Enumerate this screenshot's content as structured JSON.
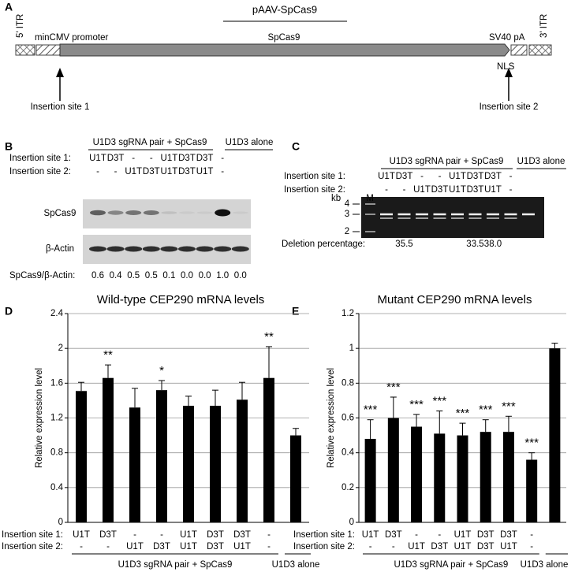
{
  "panel_labels": [
    "A",
    "B",
    "C",
    "D",
    "E"
  ],
  "construct": {
    "title": "pAAV-SpCas9",
    "itr5": "5' ITR",
    "promoter": "minCMV promoter",
    "gene": "SpCas9",
    "polya": "SV40 pA",
    "itr3": "3' ITR",
    "nls": "NLS",
    "site1": "Insertion site 1",
    "site2": "Insertion site 2"
  },
  "blot": {
    "group": "U1D3 sgRNA pair + SpCas9",
    "alone": "U1D3 alone",
    "rows": [
      {
        "label": "Insertion site 1:",
        "values": [
          "U1T",
          "D3T",
          "-",
          "-",
          "U1T",
          "D3T",
          "D3T",
          "-",
          null
        ]
      },
      {
        "label": "Insertion site 2:",
        "values": [
          "-",
          "-",
          "U1T",
          "D3T",
          "U1T",
          "D3T",
          "U1T",
          "-",
          null
        ]
      }
    ],
    "bands": [
      "SpCas9",
      "β-Actin"
    ],
    "ratio_label": "SpCas9/β-Actin:",
    "ratios": [
      "0.6",
      "0.4",
      "0.5",
      "0.5",
      "0.1",
      "0.0",
      "0.0",
      "1.0",
      "0.0"
    ]
  },
  "gel": {
    "group": "U1D3 sgRNA pair + SpCas9",
    "alone": "U1D3 alone",
    "rows": [
      {
        "label": "Insertion site 1:",
        "values": [
          "U1T",
          "D3T",
          "-",
          "-",
          "U1T",
          "D3T",
          "D3T",
          "-",
          null
        ]
      },
      {
        "label": "Insertion site 2:",
        "values": [
          "-",
          "-",
          "U1T",
          "D3T",
          "U1T",
          "D3T",
          "U1T",
          "-",
          null
        ]
      }
    ],
    "kb": "kb",
    "marker": "M",
    "ladder": [
      "4",
      "3",
      "2"
    ],
    "deletion_label": "Deletion percentage:",
    "deletion": [
      null,
      "35.5",
      null,
      null,
      null,
      "33.5",
      "38.0",
      null,
      null
    ]
  },
  "chart_data": [
    {
      "type": "bar",
      "title": "Wild-type CEP290 mRNA levels",
      "y_label": "Relative expression level",
      "ylim": [
        0,
        2.4
      ],
      "yticks": [
        0,
        0.4,
        0.8,
        1.2,
        1.6,
        2,
        2.4
      ],
      "grid": true,
      "series": [
        {
          "color": "#000000",
          "values": [
            1.51,
            1.66,
            1.32,
            1.52,
            1.34,
            1.34,
            1.41,
            1.66,
            1.0
          ],
          "errors": [
            0.1,
            0.15,
            0.22,
            0.11,
            0.11,
            0.18,
            0.2,
            0.36,
            0.08
          ]
        }
      ],
      "annotations": [
        null,
        "**",
        null,
        "*",
        null,
        null,
        null,
        "**",
        null
      ],
      "rows": [
        {
          "label": "Insertion site 1:",
          "values": [
            "U1T",
            "D3T",
            "-",
            "-",
            "U1T",
            "D3T",
            "D3T",
            "-",
            null
          ]
        },
        {
          "label": "Insertion site 2:",
          "values": [
            "-",
            "-",
            "U1T",
            "D3T",
            "U1T",
            "D3T",
            "U1T",
            "-",
            null
          ]
        }
      ],
      "group": "U1D3 sgRNA pair + SpCas9",
      "alone": "U1D3 alone"
    },
    {
      "type": "bar",
      "title": "Mutant CEP290 mRNA levels",
      "y_label": "Relative expression level",
      "ylim": [
        0,
        1.2
      ],
      "yticks": [
        0,
        0.2,
        0.4,
        0.6,
        0.8,
        1,
        1.2
      ],
      "grid": true,
      "series": [
        {
          "color": "#000000",
          "values": [
            0.48,
            0.6,
            0.55,
            0.51,
            0.5,
            0.52,
            0.52,
            0.36,
            1.0
          ],
          "errors": [
            0.11,
            0.12,
            0.07,
            0.13,
            0.07,
            0.07,
            0.09,
            0.04,
            0.03
          ]
        }
      ],
      "annotations": [
        "***",
        "***",
        "***",
        "***",
        "***",
        "***",
        "***",
        "***",
        null
      ],
      "rows": [
        {
          "label": "Insertion site 1:",
          "values": [
            "U1T",
            "D3T",
            "-",
            "-",
            "U1T",
            "D3T",
            "D3T",
            "-",
            null
          ]
        },
        {
          "label": "Insertion site 2:",
          "values": [
            "-",
            "-",
            "U1T",
            "D3T",
            "U1T",
            "D3T",
            "U1T",
            "-",
            null
          ]
        }
      ],
      "group": "U1D3 sgRNA pair + SpCas9",
      "alone": "U1D3 alone"
    }
  ]
}
